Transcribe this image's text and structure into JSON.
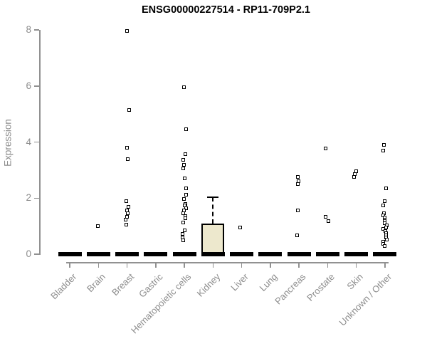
{
  "chart_data": {
    "type": "boxplot",
    "title": "ENSG00000227514 - RP11-709P2.1",
    "ylabel": "Expression",
    "xlabel": "",
    "ylim": [
      0,
      8
    ],
    "yticks": [
      0,
      2,
      4,
      6,
      8
    ],
    "grid": false,
    "legend": false,
    "categories": [
      "Bladder",
      "Brain",
      "Breast",
      "Gastric",
      "Hematopoietic cells",
      "Kidney",
      "Liver",
      "Lung",
      "Pancreas",
      "Prostate",
      "Skin",
      "Unknown / Other"
    ],
    "boxes": [
      {
        "category": "Bladder",
        "median": 0,
        "q1": 0,
        "q3": 0,
        "whisker_high": 0,
        "points": []
      },
      {
        "category": "Brain",
        "median": 0,
        "q1": 0,
        "q3": 0,
        "whisker_high": 0,
        "points": [
          1.0
        ]
      },
      {
        "category": "Breast",
        "median": 0,
        "q1": 0,
        "q3": 0,
        "whisker_high": 0,
        "points": [
          7.95,
          5.15,
          3.8,
          3.4,
          1.9,
          1.7,
          1.57,
          1.45,
          1.34,
          1.24,
          1.06
        ]
      },
      {
        "category": "Gastric",
        "median": 0,
        "q1": 0,
        "q3": 0,
        "whisker_high": 0,
        "points": []
      },
      {
        "category": "Hematopoietic cells",
        "median": 0,
        "q1": 0,
        "q3": 0,
        "whisker_high": 0,
        "points": [
          5.95,
          4.45,
          3.57,
          3.36,
          3.18,
          3.05,
          2.7,
          2.34,
          2.13,
          1.98,
          1.8,
          1.75,
          1.65,
          1.55,
          1.45,
          1.37,
          1.27,
          1.14,
          0.86,
          0.73,
          0.6,
          0.5
        ]
      },
      {
        "category": "Kidney",
        "median": 0,
        "q1": 0,
        "q3": 1.1,
        "whisker_high": 2.03,
        "points": []
      },
      {
        "category": "Liver",
        "median": 0,
        "q1": 0,
        "q3": 0,
        "whisker_high": 0,
        "points": [
          0.95
        ]
      },
      {
        "category": "Lung",
        "median": 0,
        "q1": 0,
        "q3": 0,
        "whisker_high": 0,
        "points": []
      },
      {
        "category": "Pancreas",
        "median": 0,
        "q1": 0,
        "q3": 0,
        "whisker_high": 0,
        "points": [
          2.75,
          2.6,
          2.5,
          1.55,
          0.68
        ]
      },
      {
        "category": "Prostate",
        "median": 0,
        "q1": 0,
        "q3": 0,
        "whisker_high": 0,
        "points": [
          3.78,
          1.33,
          1.18
        ]
      },
      {
        "category": "Skin",
        "median": 0,
        "q1": 0,
        "q3": 0,
        "whisker_high": 0,
        "points": [
          2.95,
          2.85,
          2.75
        ]
      },
      {
        "category": "Unknown / Other",
        "median": 0,
        "q1": 0,
        "q3": 0,
        "whisker_high": 0,
        "points": [
          3.9,
          3.7,
          2.34,
          1.88,
          1.75,
          1.45,
          1.38,
          1.3,
          1.24,
          1.17,
          1.1,
          1.03,
          0.96,
          0.89,
          0.82,
          0.75,
          0.68,
          0.6,
          0.52,
          0.44,
          0.36,
          0.3
        ]
      }
    ],
    "colors": {
      "box_fill": "#EDE8CD",
      "box_border": "#000000",
      "median": "#000000",
      "axis": "#919191",
      "text": "#8C8C8C",
      "title": "#000000",
      "point_outline": "#000000",
      "point_fill": "#FFFFFF"
    }
  }
}
